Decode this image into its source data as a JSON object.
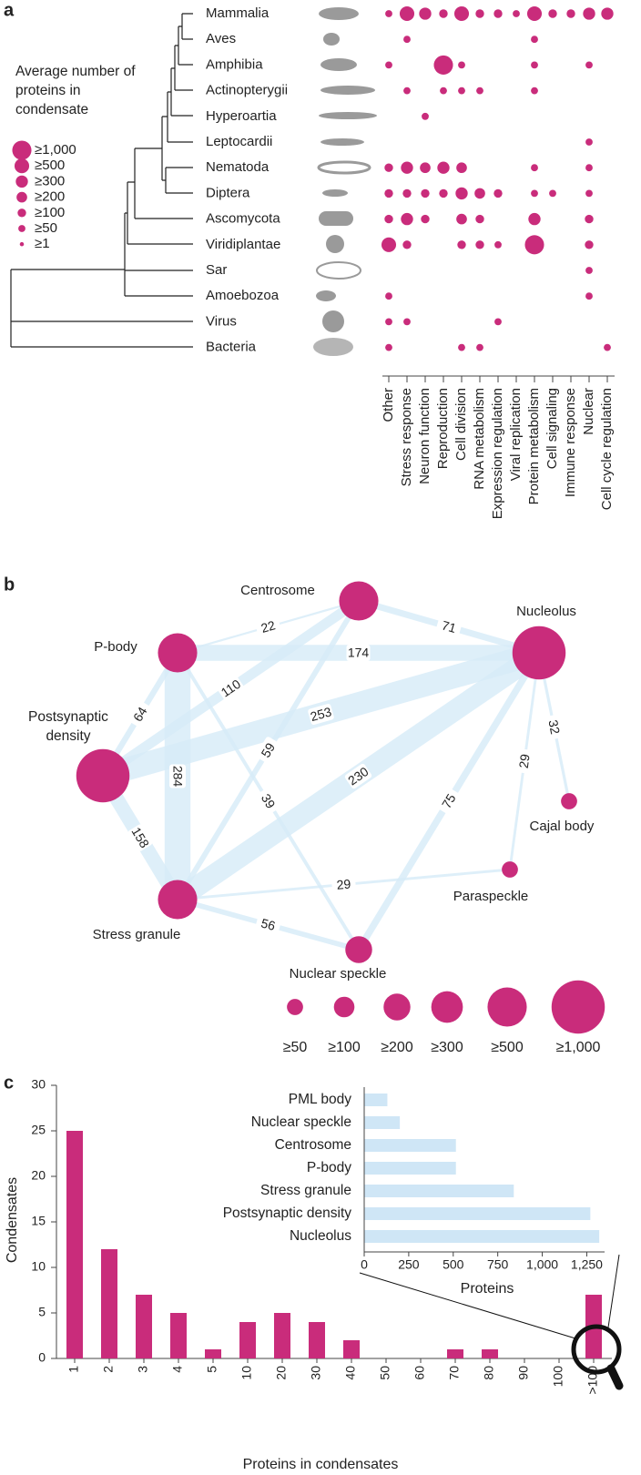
{
  "chart_data": [
    {
      "type": "dotmatrix",
      "panel": "a",
      "legend_title": "Average number of proteins in condensate",
      "size_legend": [
        {
          "value": 1000,
          "label": "≥1,000"
        },
        {
          "value": 500,
          "label": "≥500"
        },
        {
          "value": 300,
          "label": "≥300"
        },
        {
          "value": 200,
          "label": "≥200"
        },
        {
          "value": 100,
          "label": "≥100"
        },
        {
          "value": 50,
          "label": "≥50"
        },
        {
          "value": 1,
          "label": "≥1"
        }
      ],
      "rows": [
        "Mammalia",
        "Aves",
        "Amphibia",
        "Actinopterygii",
        "Hyperoartia",
        "Leptocardii",
        "Nematoda",
        "Diptera",
        "Ascomycota",
        "Viridiplantae",
        "Sar",
        "Amoebozoa",
        "Virus",
        "Bacteria"
      ],
      "columns": [
        "Other",
        "Stress response",
        "Neuron function",
        "Reproduction",
        "Cell division",
        "RNA metabolism",
        "Expression regulation",
        "Viral replication",
        "Protein metabolism",
        "Cell signaling",
        "Immune response",
        "Nuclear",
        "Cell cycle regulation"
      ],
      "values": [
        [
          50,
          500,
          300,
          100,
          500,
          100,
          100,
          50,
          500,
          100,
          100,
          300,
          300
        ],
        [
          null,
          50,
          null,
          null,
          null,
          null,
          null,
          null,
          50,
          null,
          null,
          null,
          null
        ],
        [
          50,
          null,
          null,
          1000,
          50,
          null,
          null,
          null,
          50,
          null,
          null,
          50,
          null
        ],
        [
          null,
          50,
          null,
          50,
          50,
          50,
          null,
          null,
          50,
          null,
          null,
          null,
          null
        ],
        [
          null,
          null,
          50,
          null,
          null,
          null,
          null,
          null,
          null,
          null,
          null,
          null,
          null
        ],
        [
          null,
          null,
          null,
          null,
          null,
          null,
          null,
          null,
          null,
          null,
          null,
          50,
          null
        ],
        [
          100,
          300,
          200,
          300,
          200,
          null,
          null,
          null,
          50,
          null,
          null,
          50,
          null
        ],
        [
          100,
          100,
          100,
          100,
          300,
          200,
          100,
          null,
          50,
          50,
          null,
          50,
          null
        ],
        [
          100,
          300,
          100,
          null,
          200,
          100,
          null,
          null,
          300,
          null,
          null,
          100,
          null
        ],
        [
          500,
          100,
          null,
          null,
          100,
          100,
          50,
          null,
          1000,
          null,
          null,
          100,
          null
        ],
        [
          null,
          null,
          null,
          null,
          null,
          null,
          null,
          null,
          null,
          null,
          null,
          50,
          null
        ],
        [
          50,
          null,
          null,
          null,
          null,
          null,
          null,
          null,
          null,
          null,
          null,
          50,
          null
        ],
        [
          50,
          50,
          null,
          null,
          null,
          null,
          50,
          null,
          null,
          null,
          null,
          null,
          null
        ],
        [
          50,
          null,
          null,
          null,
          50,
          50,
          null,
          null,
          null,
          null,
          null,
          null,
          50
        ]
      ],
      "color": "#c92c7b"
    },
    {
      "type": "network",
      "panel": "b",
      "nodes": [
        {
          "label": "Centrosome",
          "value": 500
        },
        {
          "label": "Nucleolus",
          "value": 1000
        },
        {
          "label": "P-body",
          "value": 500
        },
        {
          "label": "Postsynaptic density",
          "value": 1000
        },
        {
          "label": "Stress granule",
          "value": 500
        },
        {
          "label": "Nuclear speckle",
          "value": 200
        },
        {
          "label": "Paraspeckle",
          "value": 50
        },
        {
          "label": "Cajal body",
          "value": 50
        }
      ],
      "edges": [
        {
          "source": "P-body",
          "target": "Centrosome",
          "value": 22
        },
        {
          "source": "Centrosome",
          "target": "Nucleolus",
          "value": 71
        },
        {
          "source": "P-body",
          "target": "Nucleolus",
          "value": 174
        },
        {
          "source": "Postsynaptic density",
          "target": "P-body",
          "value": 64
        },
        {
          "source": "Postsynaptic density",
          "target": "Centrosome",
          "value": 110
        },
        {
          "source": "Postsynaptic density",
          "target": "Nucleolus",
          "value": 253
        },
        {
          "source": "Stress granule",
          "target": "Centrosome",
          "value": 59
        },
        {
          "source": "P-body",
          "target": "Stress granule",
          "value": 284
        },
        {
          "source": "P-body",
          "target": "Nuclear speckle",
          "value": 39
        },
        {
          "source": "Stress granule",
          "target": "Nucleolus",
          "value": 230
        },
        {
          "source": "Nuclear speckle",
          "target": "Nucleolus",
          "value": 75
        },
        {
          "source": "Paraspeckle",
          "target": "Nucleolus",
          "value": 29
        },
        {
          "source": "Cajal body",
          "target": "Nucleolus",
          "value": 32
        },
        {
          "source": "Postsynaptic density",
          "target": "Stress granule",
          "value": 158
        },
        {
          "source": "Stress granule",
          "target": "Paraspeckle",
          "value": 29
        },
        {
          "source": "Stress granule",
          "target": "Nuclear speckle",
          "value": 56
        }
      ],
      "size_legend": [
        {
          "value": 50,
          "label": "≥50"
        },
        {
          "value": 100,
          "label": "≥100"
        },
        {
          "value": 200,
          "label": "≥200"
        },
        {
          "value": 300,
          "label": "≥300"
        },
        {
          "value": 500,
          "label": "≥500"
        },
        {
          "value": 1000,
          "label": "≥1,000"
        }
      ],
      "color": "#c92c7b",
      "edge_color": "#d6ebf8"
    },
    {
      "type": "bar",
      "panel": "c",
      "categories": [
        "1",
        "2",
        "3",
        "4",
        "5",
        "10",
        "20",
        "30",
        "40",
        "50",
        "60",
        "70",
        "80",
        "90",
        "100",
        ">100"
      ],
      "values": [
        25,
        12,
        7,
        5,
        1,
        4,
        5,
        4,
        2,
        0,
        0,
        1,
        1,
        0,
        0,
        7
      ],
      "ylim": [
        0,
        30
      ],
      "yticks": [
        0,
        5,
        10,
        15,
        20,
        25,
        30
      ],
      "xlabel": "Proteins in condensates",
      "ylabel": "Condensates",
      "color": "#c92c7b"
    },
    {
      "type": "hbar",
      "categories": [
        "PML body",
        "Nuclear speckle",
        "Centrosome",
        "P-body",
        "Stress granule",
        "Postsynaptic density",
        "Nucleolus"
      ],
      "values": [
        130,
        200,
        515,
        515,
        840,
        1270,
        1320
      ],
      "xlim": [
        0,
        1350
      ],
      "xticks": [
        0,
        250,
        500,
        750,
        {
          "value": 1000,
          "label": "1,000"
        },
        {
          "value": 1250,
          "label": "1,250"
        }
      ],
      "xlabel": "Proteins",
      "color": "#cfe6f6"
    }
  ]
}
